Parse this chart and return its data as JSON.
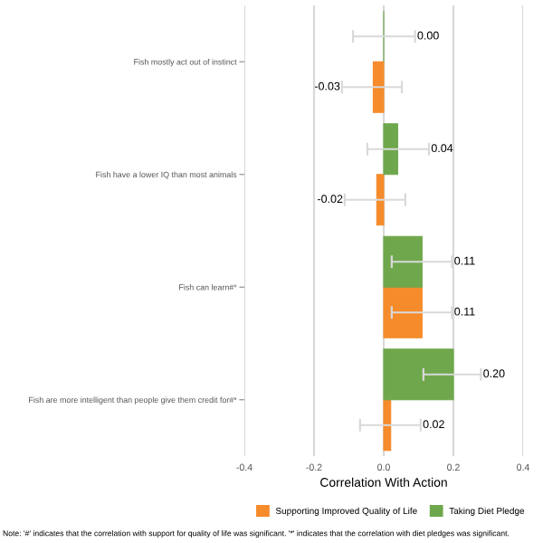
{
  "chart_data": {
    "type": "bar",
    "orientation": "horizontal",
    "xlabel": "Correlation With Action",
    "categories": [
      "Fish mostly act out of instinct",
      "Fish have a lower IQ than most animals",
      "Fish can learn#*",
      "Fish are more intelligent than people give them credit for#*"
    ],
    "series": [
      {
        "name": "Supporting Improved Quality of Life",
        "color": "#f58b2b",
        "values": [
          -0.03,
          -0.02,
          0.11,
          0.02
        ],
        "value_labels": [
          "-0.03",
          "-0.02",
          "0.11",
          "0.02"
        ],
        "errors": [
          [
            -0.12,
            0.052
          ],
          [
            -0.112,
            0.062
          ],
          [
            0.023,
            0.196
          ],
          [
            -0.068,
            0.106
          ]
        ]
      },
      {
        "name": "Taking Diet Pledge",
        "color": "#6fa84c",
        "values": [
          0.0,
          0.04,
          0.11,
          0.2
        ],
        "value_labels": [
          "0.00",
          "0.04",
          "0.11",
          "0.20"
        ],
        "errors": [
          [
            -0.088,
            0.09
          ],
          [
            -0.047,
            0.13
          ],
          [
            0.023,
            0.196
          ],
          [
            0.114,
            0.279
          ]
        ]
      }
    ],
    "xlim": [
      -0.4,
      0.4
    ],
    "xticks": [
      -0.4,
      -0.2,
      {
        "value": 0,
        "label": "0.0"
      },
      0.2,
      0.4
    ],
    "grid": "x",
    "legend": "bottom",
    "annotations": [
      "Note: '#' indicates that the correlation with support for quality of life was significant. '*' indicates that the correlation with diet pledges was significant."
    ]
  }
}
